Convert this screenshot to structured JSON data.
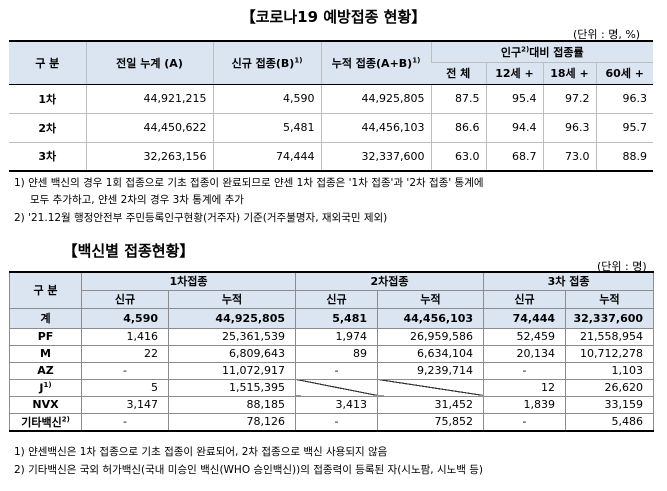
{
  "title1": "【코로나19 예방접종 현황】",
  "unit1": "(단위 : 명, %)",
  "t1": {
    "h_gubun": "구 분",
    "h_prev": "전일 누계 (A)",
    "h_new": "신규 접종(B)",
    "h_new_sup": "1)",
    "h_cum": "누적 접종(A+B)",
    "h_cum_sup": "1)",
    "h_rate_a": "인구",
    "h_rate_sup": "2)",
    "h_rate_b": "대비 접종률",
    "h_all": "전 체",
    "h_12": "12세 +",
    "h_18": "18세 +",
    "h_60": "60세 +",
    "rows": [
      {
        "label": "1차",
        "prev": "44,921,215",
        "new": "4,590",
        "cum": "44,925,805",
        "all": "87.5",
        "a12": "95.4",
        "a18": "97.2",
        "a60": "96.3"
      },
      {
        "label": "2차",
        "prev": "44,450,622",
        "new": "5,481",
        "cum": "44,456,103",
        "all": "86.6",
        "a12": "94.4",
        "a18": "96.3",
        "a60": "95.7"
      },
      {
        "label": "3차",
        "prev": "32,263,156",
        "new": "74,444",
        "cum": "32,337,600",
        "all": "63.0",
        "a12": "68.7",
        "a18": "73.0",
        "a60": "88.9"
      }
    ]
  },
  "notes1": [
    "1) 얀센 백신의 경우 1회 접종으로 기초 접종이 완료되므로 얀센 1차 접종은 '1차 접종'과 '2차 접종' 통계에",
    "모두 추가하고, 얀센 2차의 경우 3차 통계에 추가",
    "2) '21.12월 행정안전부 주민등록인구현황(거주자) 기준(거주불명자, 재외국민 제외)"
  ],
  "title2": "【백신별 접종현황】",
  "unit2": "(단위 : 명)",
  "t2": {
    "h_gubun": "구 분",
    "h_d1": "1차접종",
    "h_d2": "2차접종",
    "h_d3": "3차 접종",
    "h_new": "신규",
    "h_cum": "누적",
    "rows": [
      {
        "label": "계",
        "sup": "",
        "n1": "4,590",
        "c1": "44,925,805",
        "n2": "5,481",
        "c2": "44,456,103",
        "n3": "74,444",
        "c3": "32,337,600"
      },
      {
        "label": "PF",
        "sup": "",
        "n1": "1,416",
        "c1": "25,361,539",
        "n2": "1,974",
        "c2": "26,959,586",
        "n3": "52,459",
        "c3": "21,558,954"
      },
      {
        "label": "M",
        "sup": "",
        "n1": "22",
        "c1": "6,809,643",
        "n2": "89",
        "c2": "6,634,104",
        "n3": "20,134",
        "c3": "10,712,278"
      },
      {
        "label": "AZ",
        "sup": "",
        "n1": "-",
        "c1": "11,072,917",
        "n2": "-",
        "c2": "9,239,714",
        "n3": "-",
        "c3": "1,103"
      },
      {
        "label": "J",
        "sup": "1)",
        "n1": "5",
        "c1": "1,515,395",
        "n2": "",
        "c2": "",
        "n3": "12",
        "c3": "26,620"
      },
      {
        "label": "NVX",
        "sup": "",
        "n1": "3,147",
        "c1": "88,185",
        "n2": "3,413",
        "c2": "31,452",
        "n3": "1,839",
        "c3": "33,159"
      },
      {
        "label": "기타백신",
        "sup": "2)",
        "n1": "-",
        "c1": "78,126",
        "n2": "-",
        "c2": "75,852",
        "n3": "-",
        "c3": "5,486"
      }
    ]
  },
  "notes2": [
    "1) 얀센백신은 1차 접종으로 기초 접종이 완료되어, 2차 접종으로 백신 사용되지 않음",
    "2) 기타백신은 국외 허가백신(국내 미승인 백신(WHO 승인백신))의 접종력이 등록된 자(시노팜, 시노백 등)"
  ]
}
